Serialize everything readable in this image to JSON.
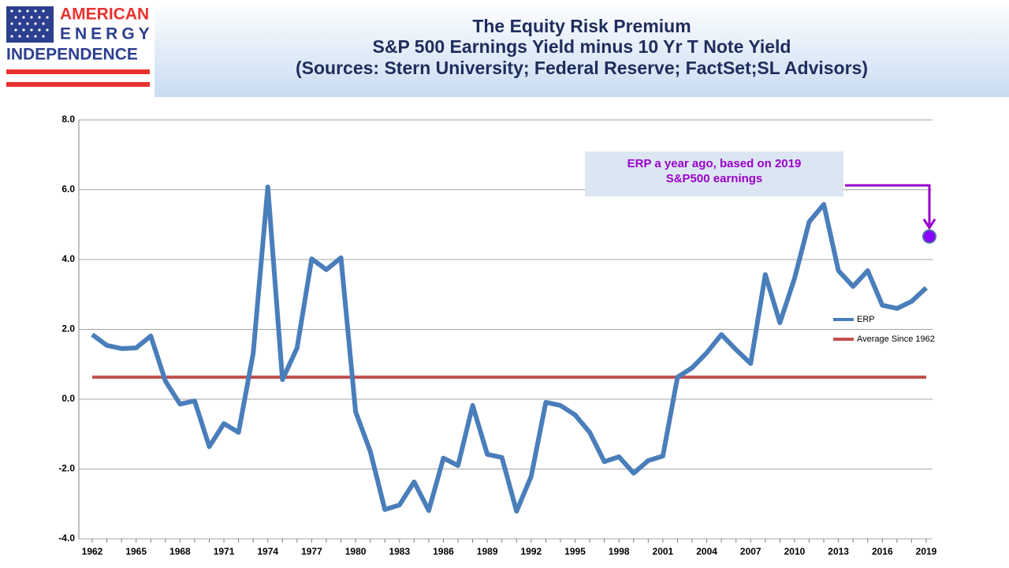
{
  "logo": [
    "AMERICAN",
    "ENERGY",
    "INDEPENDENCE"
  ],
  "chart_data": {
    "type": "line",
    "title": "The Equity Risk Premium",
    "subtitle": "S&P 500 Earnings Yield minus 10 Yr T Note Yield",
    "sources": "(Sources: Stern University; Federal Reserve; FactSet;SL Advisors)",
    "categories": [
      "1962",
      null,
      null,
      "1965",
      null,
      null,
      "1968",
      null,
      null,
      "1971",
      null,
      null,
      "1974",
      null,
      null,
      "1977",
      null,
      null,
      "1980",
      null,
      null,
      "1983",
      null,
      null,
      "1986",
      null,
      null,
      "1989",
      null,
      null,
      "1992",
      null,
      null,
      "1995",
      null,
      null,
      "1998",
      null,
      null,
      "2001",
      null,
      null,
      "2004",
      null,
      null,
      "2007",
      null,
      null,
      "2010",
      null,
      null,
      "2013",
      null,
      null,
      "2016",
      null,
      null,
      "2019"
    ],
    "series": [
      {
        "name": "ERP",
        "color": "#4a7ebb",
        "values": [
          1.85,
          1.54,
          1.45,
          1.47,
          1.81,
          0.52,
          -0.14,
          -0.05,
          -1.36,
          -0.7,
          -0.95,
          1.31,
          6.08,
          0.56,
          1.47,
          4.02,
          3.71,
          4.05,
          -0.36,
          -1.49,
          -3.16,
          -3.03,
          -2.37,
          -3.19,
          -1.69,
          -1.9,
          -0.18,
          -1.58,
          -1.67,
          -3.21,
          -2.21,
          -0.09,
          -0.18,
          -0.45,
          -0.95,
          -1.79,
          -1.65,
          -2.12,
          -1.76,
          -1.63,
          0.63,
          0.9,
          1.33,
          1.85,
          1.42,
          1.02,
          3.57,
          2.19,
          3.46,
          5.08,
          5.58,
          3.68,
          3.23,
          3.68,
          2.69,
          2.6,
          2.8,
          3.19
        ]
      },
      {
        "name": "Average Since 1962",
        "color": "#c0504d",
        "values": [
          0.63,
          0.63,
          0.63,
          0.63,
          0.63,
          0.63,
          0.63,
          0.63,
          0.63,
          0.63,
          0.63,
          0.63,
          0.63,
          0.63,
          0.63,
          0.63,
          0.63,
          0.63,
          0.63,
          0.63,
          0.63,
          0.63,
          0.63,
          0.63,
          0.63,
          0.63,
          0.63,
          0.63,
          0.63,
          0.63,
          0.63,
          0.63,
          0.63,
          0.63,
          0.63,
          0.63,
          0.63,
          0.63,
          0.63,
          0.63,
          0.63,
          0.63,
          0.63,
          0.63,
          0.63,
          0.63,
          0.63,
          0.63,
          0.63,
          0.63,
          0.63,
          0.63,
          0.63,
          0.63,
          0.63,
          0.63,
          0.63,
          0.63
        ]
      }
    ],
    "highlight": {
      "x": "2019",
      "value": 4.66,
      "color": "#8b00ff"
    },
    "annotation": [
      "ERP a year ago, based on 2019",
      "S&P500 earnings"
    ],
    "annotation_color": "#9900cc",
    "ylim": [
      -4,
      8
    ],
    "yticks": [
      {
        "value": -4,
        "label": "-4.0"
      },
      {
        "value": -2,
        "label": "-2.0"
      },
      {
        "value": 0,
        "label": "0.0"
      },
      {
        "value": 2,
        "label": "2.0"
      },
      {
        "value": 4,
        "label": "4.0"
      },
      {
        "value": 6,
        "label": "6.0"
      },
      {
        "value": 8,
        "label": "8.0"
      }
    ],
    "grid": true,
    "legend": "right"
  }
}
